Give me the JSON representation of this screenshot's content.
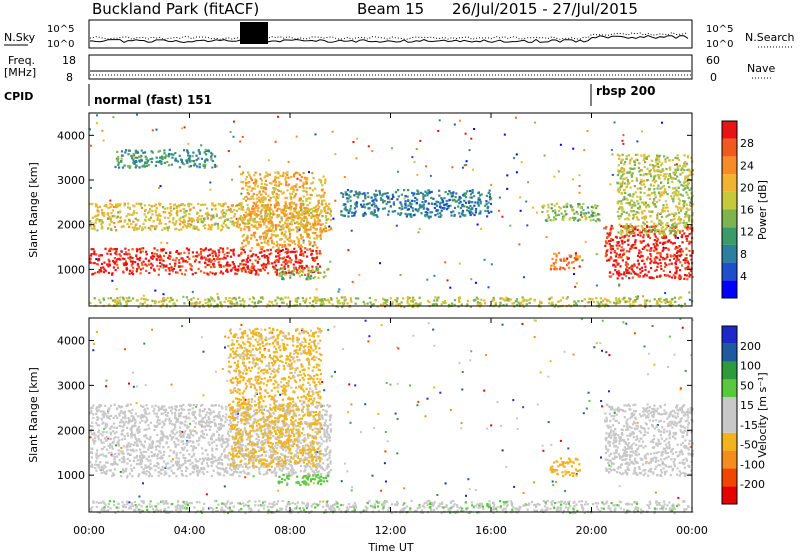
{
  "header": {
    "station": "Buckland Park (fitACF)",
    "beam": "Beam 15",
    "date_range": "26/Jul/2015 - 27/Jul/2015"
  },
  "status_panels": {
    "nsky_label": "N.Sky",
    "nsearch_label": "N.Search",
    "noise_ticks": [
      "10^5",
      "10^0"
    ],
    "freq_label_line1": "Freq.",
    "freq_label_line2": "[MHz]",
    "freq_ticks": [
      "18",
      "8"
    ],
    "nave_label": "Nave",
    "nave_ticks": [
      "60",
      "0"
    ],
    "cpid_label": "CPID",
    "cpid_modes": [
      {
        "label": "normal (fast) 151",
        "start_hour": 0
      },
      {
        "label": "rbsp 200",
        "start_hour": 20
      }
    ]
  },
  "x_axis": {
    "label": "Time UT",
    "ticks": [
      "00:00",
      "04:00",
      "08:00",
      "12:00",
      "16:00",
      "20:00",
      "00:00"
    ]
  },
  "chart_data": [
    {
      "type": "heatmap",
      "panel": "power",
      "xlabel": "Time UT",
      "ylabel": "Slant Range [km]",
      "x_range_hours": [
        0,
        24
      ],
      "ylim": [
        180,
        4500
      ],
      "y_ticks": [
        1000,
        2000,
        3000,
        4000
      ],
      "colorbar": {
        "label": "Power [dB]",
        "ticks": [
          "4",
          "8",
          "12",
          "16",
          "20",
          "24",
          "28"
        ],
        "range": [
          0,
          30
        ],
        "colors": [
          "#0000ff",
          "#1d4fc8",
          "#2d7fa0",
          "#3a9a6a",
          "#7cb450",
          "#c8c83c",
          "#f0b432",
          "#f58c28",
          "#f05a1e",
          "#e61414"
        ]
      },
      "regions": [
        {
          "x": [
            0,
            9.2
          ],
          "y": [
            900,
            1500
          ],
          "level": 28
        },
        {
          "x": [
            0,
            9.6
          ],
          "y": [
            1900,
            2500
          ],
          "level": 18
        },
        {
          "x": [
            6,
            9.4
          ],
          "y": [
            1500,
            3200
          ],
          "level": 20
        },
        {
          "x": [
            1,
            5
          ],
          "y": [
            3300,
            3700
          ],
          "level": 10
        },
        {
          "x": [
            7.5,
            9.5
          ],
          "y": [
            800,
            1050
          ],
          "level": 14
        },
        {
          "x": [
            10,
            16
          ],
          "y": [
            2200,
            2800
          ],
          "level": 8
        },
        {
          "x": [
            18.3,
            19.5
          ],
          "y": [
            1000,
            1400
          ],
          "level": 24
        },
        {
          "x": [
            18,
            20.3
          ],
          "y": [
            2100,
            2500
          ],
          "level": 14
        },
        {
          "x": [
            20.5,
            24
          ],
          "y": [
            800,
            2000
          ],
          "level": 28
        },
        {
          "x": [
            21,
            24
          ],
          "y": [
            1800,
            3600
          ],
          "level": 16
        },
        {
          "x": [
            0,
            24
          ],
          "y": [
            180,
            400
          ],
          "level": 16
        }
      ]
    },
    {
      "type": "heatmap",
      "panel": "velocity",
      "xlabel": "Time UT",
      "ylabel": "Slant Range [km]",
      "x_range_hours": [
        0,
        24
      ],
      "ylim": [
        180,
        4500
      ],
      "y_ticks": [
        1000,
        2000,
        3000,
        4000
      ],
      "colorbar": {
        "label": "Velocity [m s⁻¹]",
        "ticks": [
          "200",
          "100",
          "50",
          "15",
          "-15",
          "-50",
          "-100",
          "-200"
        ],
        "range": [
          -250,
          250
        ],
        "colors": [
          "#e60000",
          "#f04600",
          "#f58c1e",
          "#f0b41e",
          "#c8c8c8",
          "#c8c8c8",
          "#5ac83c",
          "#2d9a3c",
          "#1e5aa0",
          "#1e28c8"
        ]
      },
      "regions": [
        {
          "x": [
            0,
            9.6
          ],
          "y": [
            1000,
            2600
          ],
          "level": 0
        },
        {
          "x": [
            5.5,
            9.2
          ],
          "y": [
            1200,
            4300
          ],
          "level": -60
        },
        {
          "x": [
            7.5,
            9.5
          ],
          "y": [
            800,
            1050
          ],
          "level": 80
        },
        {
          "x": [
            18.3,
            19.5
          ],
          "y": [
            1000,
            1400
          ],
          "level": -70
        },
        {
          "x": [
            20.5,
            24
          ],
          "y": [
            1000,
            2600
          ],
          "level": 0
        },
        {
          "x": [
            0,
            24
          ],
          "y": [
            180,
            450
          ],
          "level": 40
        }
      ]
    }
  ]
}
